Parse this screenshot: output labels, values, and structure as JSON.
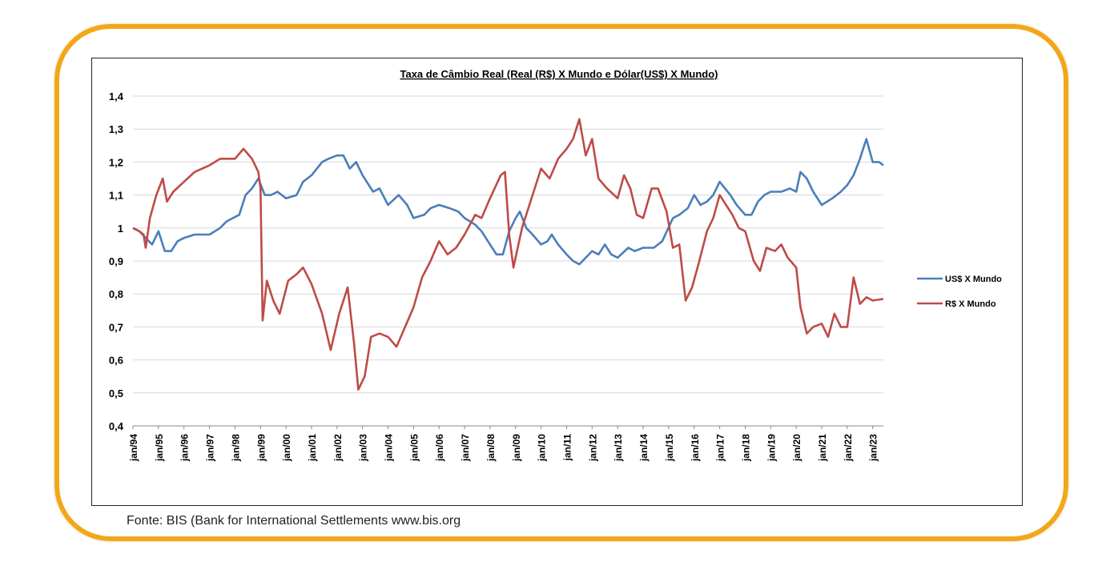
{
  "source_text": "Fonte: BIS (Bank for International Settlements www.bis.org",
  "colors": {
    "frame": "#f2a71b",
    "usd": "#4a7ebb",
    "brl": "#be4b48",
    "grid": "#d9d9d9"
  },
  "chart_data": {
    "type": "line",
    "title": "Taxa de Câmbio Real (Real (R$) X Mundo e Dólar(US$)  X Mundo)",
    "xlabel": "",
    "ylabel": "",
    "ylim": [
      0.4,
      1.4
    ],
    "yticks": [
      "0,4",
      "0,5",
      "0,6",
      "0,7",
      "0,8",
      "0,9",
      "1",
      "1,1",
      "1,2",
      "1,3",
      "1,4"
    ],
    "ytick_values": [
      0.4,
      0.5,
      0.6,
      0.7,
      0.8,
      0.9,
      1.0,
      1.1,
      1.2,
      1.3,
      1.4
    ],
    "xticks": [
      "jan/94",
      "jan/95",
      "jan/96",
      "jan/97",
      "jan/98",
      "jan/99",
      "jan/00",
      "jan/01",
      "jan/02",
      "jan/03",
      "jan/04",
      "jan/05",
      "jan/06",
      "jan/07",
      "jan/08",
      "jan/09",
      "jan/10",
      "jan/11",
      "jan/12",
      "jan/13",
      "jan/14",
      "jan/15",
      "jan/16",
      "jan/17",
      "jan/18",
      "jan/19",
      "jan/20",
      "jan/21",
      "jan/22",
      "jan/23"
    ],
    "x_range": [
      "1994-01",
      "2023-06"
    ],
    "grid": true,
    "legend_position": "right",
    "series": [
      {
        "name": "US$ X Mundo",
        "color": "#4a7ebb",
        "points": [
          [
            "1994-01",
            1.0
          ],
          [
            "1994-04",
            0.99
          ],
          [
            "1994-07",
            0.97
          ],
          [
            "1994-10",
            0.95
          ],
          [
            "1995-01",
            0.99
          ],
          [
            "1995-04",
            0.93
          ],
          [
            "1995-07",
            0.93
          ],
          [
            "1995-10",
            0.96
          ],
          [
            "1996-01",
            0.97
          ],
          [
            "1996-06",
            0.98
          ],
          [
            "1997-01",
            0.98
          ],
          [
            "1997-06",
            1.0
          ],
          [
            "1997-09",
            1.02
          ],
          [
            "1997-12",
            1.03
          ],
          [
            "1998-03",
            1.04
          ],
          [
            "1998-06",
            1.1
          ],
          [
            "1998-09",
            1.12
          ],
          [
            "1998-12",
            1.15
          ],
          [
            "1999-03",
            1.1
          ],
          [
            "1999-06",
            1.1
          ],
          [
            "1999-09",
            1.11
          ],
          [
            "2000-01",
            1.09
          ],
          [
            "2000-06",
            1.1
          ],
          [
            "2000-09",
            1.14
          ],
          [
            "2001-01",
            1.16
          ],
          [
            "2001-06",
            1.2
          ],
          [
            "2001-09",
            1.21
          ],
          [
            "2002-01",
            1.22
          ],
          [
            "2002-04",
            1.22
          ],
          [
            "2002-07",
            1.18
          ],
          [
            "2002-10",
            1.2
          ],
          [
            "2003-01",
            1.16
          ],
          [
            "2003-06",
            1.11
          ],
          [
            "2003-09",
            1.12
          ],
          [
            "2004-01",
            1.07
          ],
          [
            "2004-06",
            1.1
          ],
          [
            "2004-10",
            1.07
          ],
          [
            "2005-01",
            1.03
          ],
          [
            "2005-06",
            1.04
          ],
          [
            "2005-09",
            1.06
          ],
          [
            "2006-01",
            1.07
          ],
          [
            "2006-06",
            1.06
          ],
          [
            "2006-10",
            1.05
          ],
          [
            "2007-01",
            1.03
          ],
          [
            "2007-06",
            1.01
          ],
          [
            "2007-09",
            0.99
          ],
          [
            "2008-01",
            0.95
          ],
          [
            "2008-04",
            0.92
          ],
          [
            "2008-07",
            0.92
          ],
          [
            "2008-10",
            0.99
          ],
          [
            "2009-01",
            1.03
          ],
          [
            "2009-03",
            1.05
          ],
          [
            "2009-06",
            1.0
          ],
          [
            "2009-09",
            0.98
          ],
          [
            "2010-01",
            0.95
          ],
          [
            "2010-04",
            0.96
          ],
          [
            "2010-06",
            0.98
          ],
          [
            "2010-09",
            0.95
          ],
          [
            "2011-01",
            0.92
          ],
          [
            "2011-04",
            0.9
          ],
          [
            "2011-07",
            0.89
          ],
          [
            "2011-10",
            0.91
          ],
          [
            "2012-01",
            0.93
          ],
          [
            "2012-04",
            0.92
          ],
          [
            "2012-07",
            0.95
          ],
          [
            "2012-10",
            0.92
          ],
          [
            "2013-01",
            0.91
          ],
          [
            "2013-06",
            0.94
          ],
          [
            "2013-09",
            0.93
          ],
          [
            "2014-01",
            0.94
          ],
          [
            "2014-06",
            0.94
          ],
          [
            "2014-10",
            0.96
          ],
          [
            "2015-03",
            1.03
          ],
          [
            "2015-06",
            1.04
          ],
          [
            "2015-10",
            1.06
          ],
          [
            "2016-01",
            1.1
          ],
          [
            "2016-04",
            1.07
          ],
          [
            "2016-07",
            1.08
          ],
          [
            "2016-10",
            1.1
          ],
          [
            "2017-01",
            1.14
          ],
          [
            "2017-06",
            1.1
          ],
          [
            "2017-09",
            1.07
          ],
          [
            "2018-01",
            1.04
          ],
          [
            "2018-04",
            1.04
          ],
          [
            "2018-07",
            1.08
          ],
          [
            "2018-10",
            1.1
          ],
          [
            "2019-01",
            1.11
          ],
          [
            "2019-06",
            1.11
          ],
          [
            "2019-10",
            1.12
          ],
          [
            "2020-01",
            1.11
          ],
          [
            "2020-03",
            1.17
          ],
          [
            "2020-06",
            1.15
          ],
          [
            "2020-09",
            1.11
          ],
          [
            "2021-01",
            1.07
          ],
          [
            "2021-06",
            1.09
          ],
          [
            "2021-10",
            1.11
          ],
          [
            "2022-01",
            1.13
          ],
          [
            "2022-04",
            1.16
          ],
          [
            "2022-07",
            1.21
          ],
          [
            "2022-09",
            1.25
          ],
          [
            "2022-10",
            1.27
          ],
          [
            "2023-01",
            1.2
          ],
          [
            "2023-04",
            1.2
          ],
          [
            "2023-06",
            1.19
          ]
        ]
      },
      {
        "name": "R$ X Mundo",
        "color": "#be4b48",
        "points": [
          [
            "1994-01",
            1.0
          ],
          [
            "1994-04",
            0.99
          ],
          [
            "1994-06",
            0.98
          ],
          [
            "1994-07",
            0.94
          ],
          [
            "1994-09",
            1.03
          ],
          [
            "1994-12",
            1.1
          ],
          [
            "1995-03",
            1.15
          ],
          [
            "1995-05",
            1.08
          ],
          [
            "1995-08",
            1.11
          ],
          [
            "1996-01",
            1.14
          ],
          [
            "1996-06",
            1.17
          ],
          [
            "1997-01",
            1.19
          ],
          [
            "1997-06",
            1.21
          ],
          [
            "1998-01",
            1.21
          ],
          [
            "1998-05",
            1.24
          ],
          [
            "1998-09",
            1.21
          ],
          [
            "1998-12",
            1.17
          ],
          [
            "1999-01",
            1.12
          ],
          [
            "1999-02",
            0.72
          ],
          [
            "1999-04",
            0.84
          ],
          [
            "1999-07",
            0.78
          ],
          [
            "1999-10",
            0.74
          ],
          [
            "2000-02",
            0.84
          ],
          [
            "2000-06",
            0.86
          ],
          [
            "2000-09",
            0.88
          ],
          [
            "2001-01",
            0.83
          ],
          [
            "2001-06",
            0.74
          ],
          [
            "2001-10",
            0.63
          ],
          [
            "2002-02",
            0.74
          ],
          [
            "2002-06",
            0.82
          ],
          [
            "2002-09",
            0.65
          ],
          [
            "2002-11",
            0.51
          ],
          [
            "2003-02",
            0.55
          ],
          [
            "2003-05",
            0.67
          ],
          [
            "2003-09",
            0.68
          ],
          [
            "2004-01",
            0.67
          ],
          [
            "2004-05",
            0.64
          ],
          [
            "2004-09",
            0.7
          ],
          [
            "2005-01",
            0.76
          ],
          [
            "2005-05",
            0.85
          ],
          [
            "2005-09",
            0.9
          ],
          [
            "2006-01",
            0.96
          ],
          [
            "2006-05",
            0.92
          ],
          [
            "2006-09",
            0.94
          ],
          [
            "2007-01",
            0.98
          ],
          [
            "2007-06",
            1.04
          ],
          [
            "2007-09",
            1.03
          ],
          [
            "2008-01",
            1.09
          ],
          [
            "2008-06",
            1.16
          ],
          [
            "2008-08",
            1.17
          ],
          [
            "2008-10",
            0.98
          ],
          [
            "2008-12",
            0.88
          ],
          [
            "2009-04",
            1.0
          ],
          [
            "2009-09",
            1.1
          ],
          [
            "2010-01",
            1.18
          ],
          [
            "2010-05",
            1.15
          ],
          [
            "2010-09",
            1.21
          ],
          [
            "2011-01",
            1.24
          ],
          [
            "2011-04",
            1.27
          ],
          [
            "2011-07",
            1.33
          ],
          [
            "2011-10",
            1.22
          ],
          [
            "2012-01",
            1.27
          ],
          [
            "2012-04",
            1.15
          ],
          [
            "2012-08",
            1.12
          ],
          [
            "2013-01",
            1.09
          ],
          [
            "2013-04",
            1.16
          ],
          [
            "2013-07",
            1.12
          ],
          [
            "2013-10",
            1.04
          ],
          [
            "2014-01",
            1.03
          ],
          [
            "2014-05",
            1.12
          ],
          [
            "2014-08",
            1.12
          ],
          [
            "2014-12",
            1.05
          ],
          [
            "2015-03",
            0.94
          ],
          [
            "2015-06",
            0.95
          ],
          [
            "2015-09",
            0.78
          ],
          [
            "2015-12",
            0.82
          ],
          [
            "2016-03",
            0.89
          ],
          [
            "2016-07",
            0.99
          ],
          [
            "2016-10",
            1.03
          ],
          [
            "2017-01",
            1.1
          ],
          [
            "2017-04",
            1.07
          ],
          [
            "2017-07",
            1.04
          ],
          [
            "2017-10",
            1.0
          ],
          [
            "2018-01",
            0.99
          ],
          [
            "2018-05",
            0.9
          ],
          [
            "2018-08",
            0.87
          ],
          [
            "2018-11",
            0.94
          ],
          [
            "2019-03",
            0.93
          ],
          [
            "2019-06",
            0.95
          ],
          [
            "2019-09",
            0.91
          ],
          [
            "2020-01",
            0.88
          ],
          [
            "2020-03",
            0.76
          ],
          [
            "2020-06",
            0.68
          ],
          [
            "2020-09",
            0.7
          ],
          [
            "2021-01",
            0.71
          ],
          [
            "2021-04",
            0.67
          ],
          [
            "2021-07",
            0.74
          ],
          [
            "2021-10",
            0.7
          ],
          [
            "2022-01",
            0.7
          ],
          [
            "2022-04",
            0.85
          ],
          [
            "2022-07",
            0.77
          ],
          [
            "2022-10",
            0.79
          ],
          [
            "2023-01",
            0.78
          ],
          [
            "2023-06",
            0.785
          ]
        ]
      }
    ]
  }
}
